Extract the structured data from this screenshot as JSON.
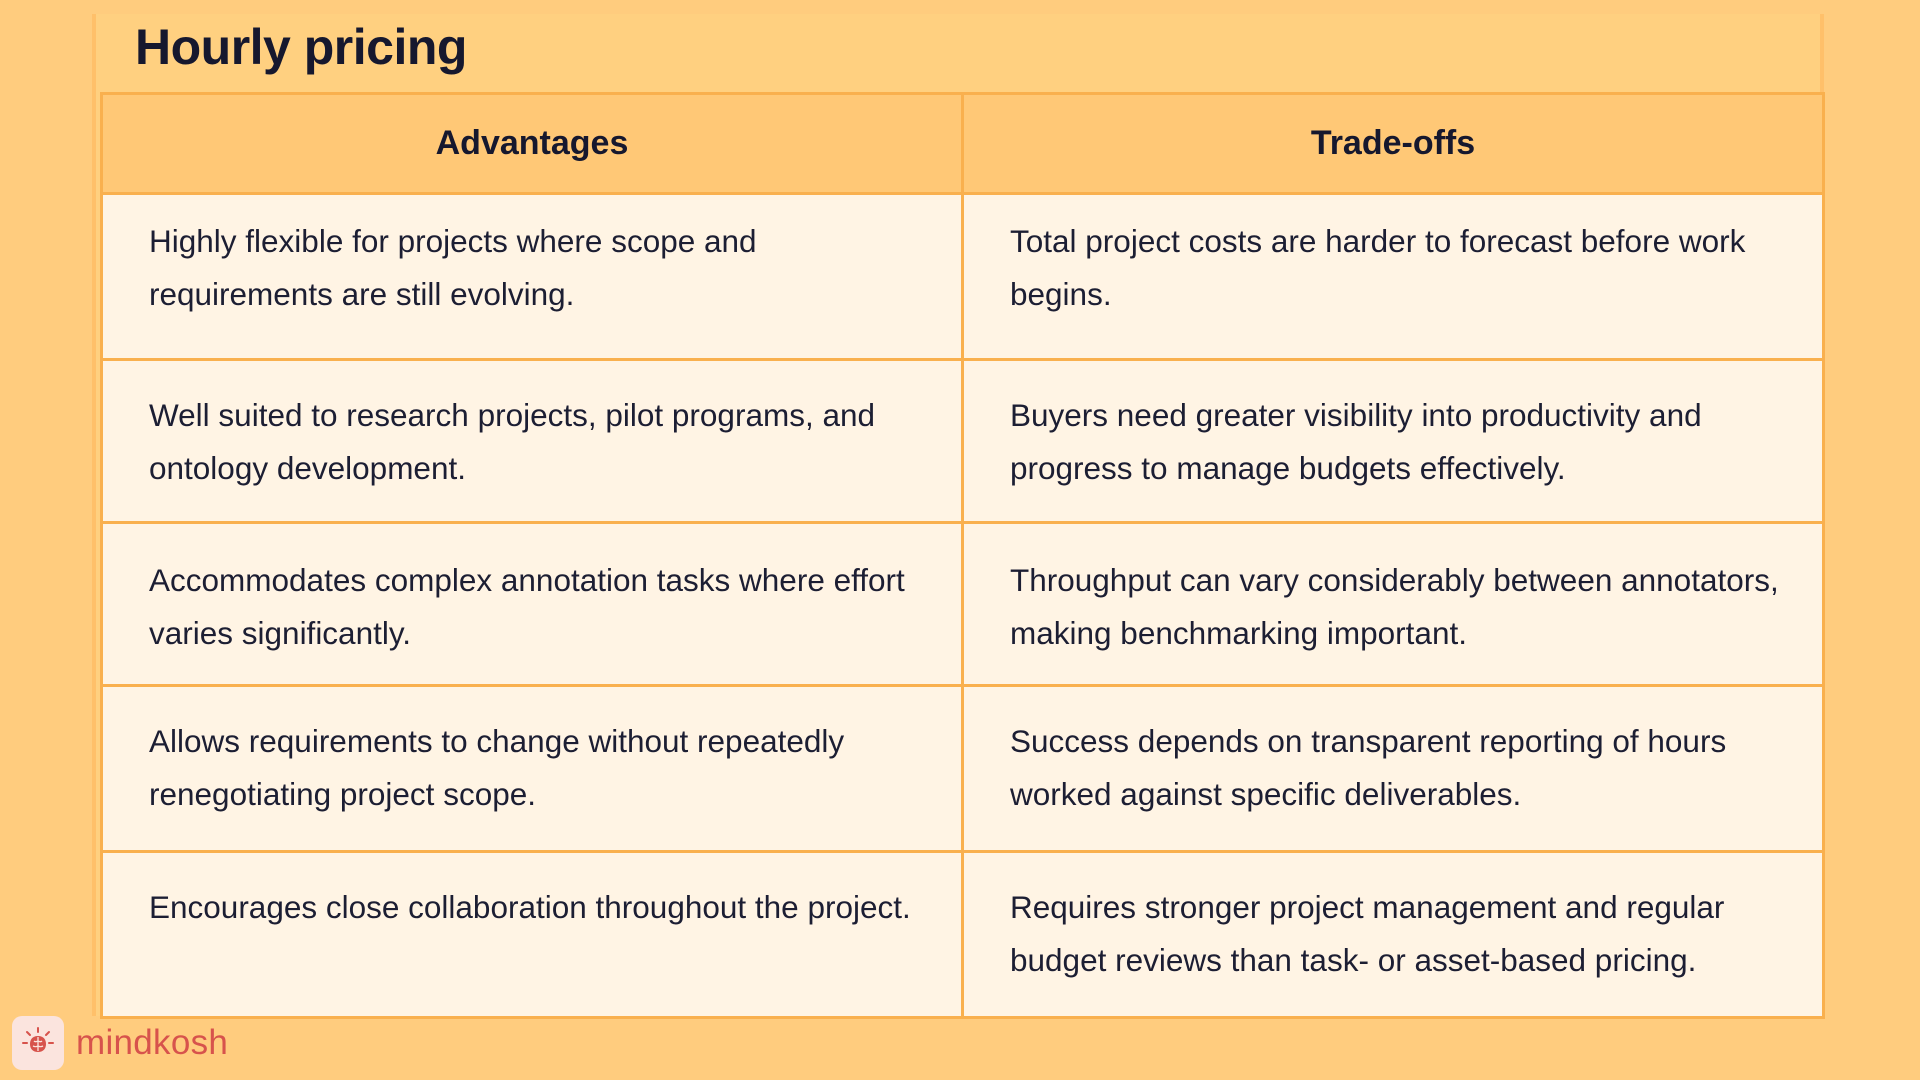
{
  "title": "Hourly pricing",
  "table": {
    "headers": [
      "Advantages",
      "Trade-offs"
    ],
    "rows": [
      {
        "advantage": "Highly flexible for projects where scope and requirements are still evolving.",
        "tradeoff": "Total project costs are harder to forecast before work begins."
      },
      {
        "advantage": "Well suited to research projects, pilot programs, and ontology development.",
        "tradeoff": "Buyers need greater visibility into productivity and progress to manage budgets effectively."
      },
      {
        "advantage": "Accommodates complex annotation tasks where effort varies significantly.",
        "tradeoff": "Throughput can vary considerably between annotators, making benchmarking important."
      },
      {
        "advantage": "Allows requirements to change without repeatedly renegotiating project scope.",
        "tradeoff": "Success depends on transparent reporting of hours worked against specific deliverables."
      },
      {
        "advantage": "Encourages close collaboration throughout the project.",
        "tradeoff": "Requires stronger project management and regular budget reviews than task- or asset-based pricing."
      }
    ]
  },
  "brand": {
    "name": "mindkosh",
    "icon": "brain-icon"
  },
  "colors": {
    "background": "#FFCC7E",
    "header_fill": "#FFC876",
    "cell_fill": "#FFF4E4",
    "border": "#F9B04E",
    "text": "#16182E",
    "brand_accent": "#D7534C"
  }
}
